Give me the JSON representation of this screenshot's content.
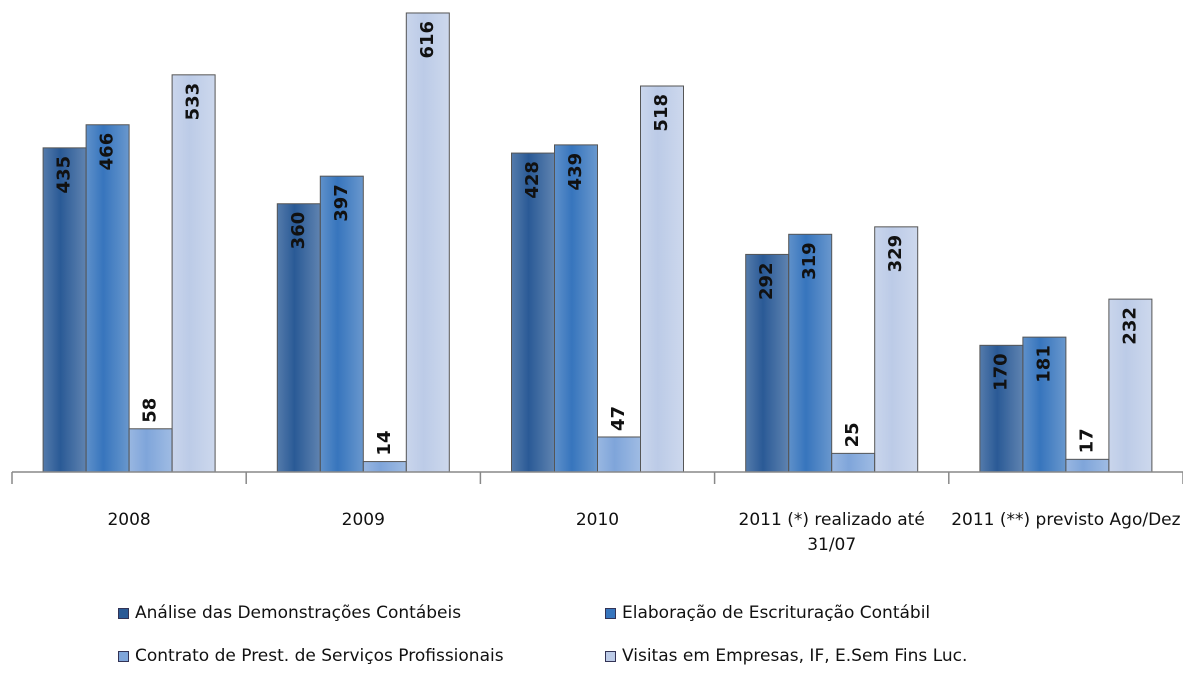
{
  "chart_data": {
    "type": "bar",
    "categories": [
      "2008",
      "2009",
      "2010",
      "2011 (*) realizado até 31/07",
      "2011 (**) previsto Ago/Dez"
    ],
    "series": [
      {
        "name": "Análise das Demonstrações Contábeis",
        "color": "#2a5a96",
        "values": [
          435,
          360,
          428,
          292,
          170
        ]
      },
      {
        "name": "Elaboração de Escrituração Contábil",
        "color": "#3775bd",
        "values": [
          466,
          397,
          439,
          319,
          181
        ]
      },
      {
        "name": "Contrato de Prest. de Serviços Profissionais",
        "color": "#7fa5da",
        "values": [
          58,
          14,
          47,
          25,
          17
        ]
      },
      {
        "name": "Visitas em Empresas, IF, E.Sem Fins Luc.",
        "color": "#bccbe7",
        "values": [
          533,
          616,
          518,
          329,
          232
        ]
      }
    ],
    "ylim": [
      0,
      620
    ],
    "legend": "bottom"
  }
}
